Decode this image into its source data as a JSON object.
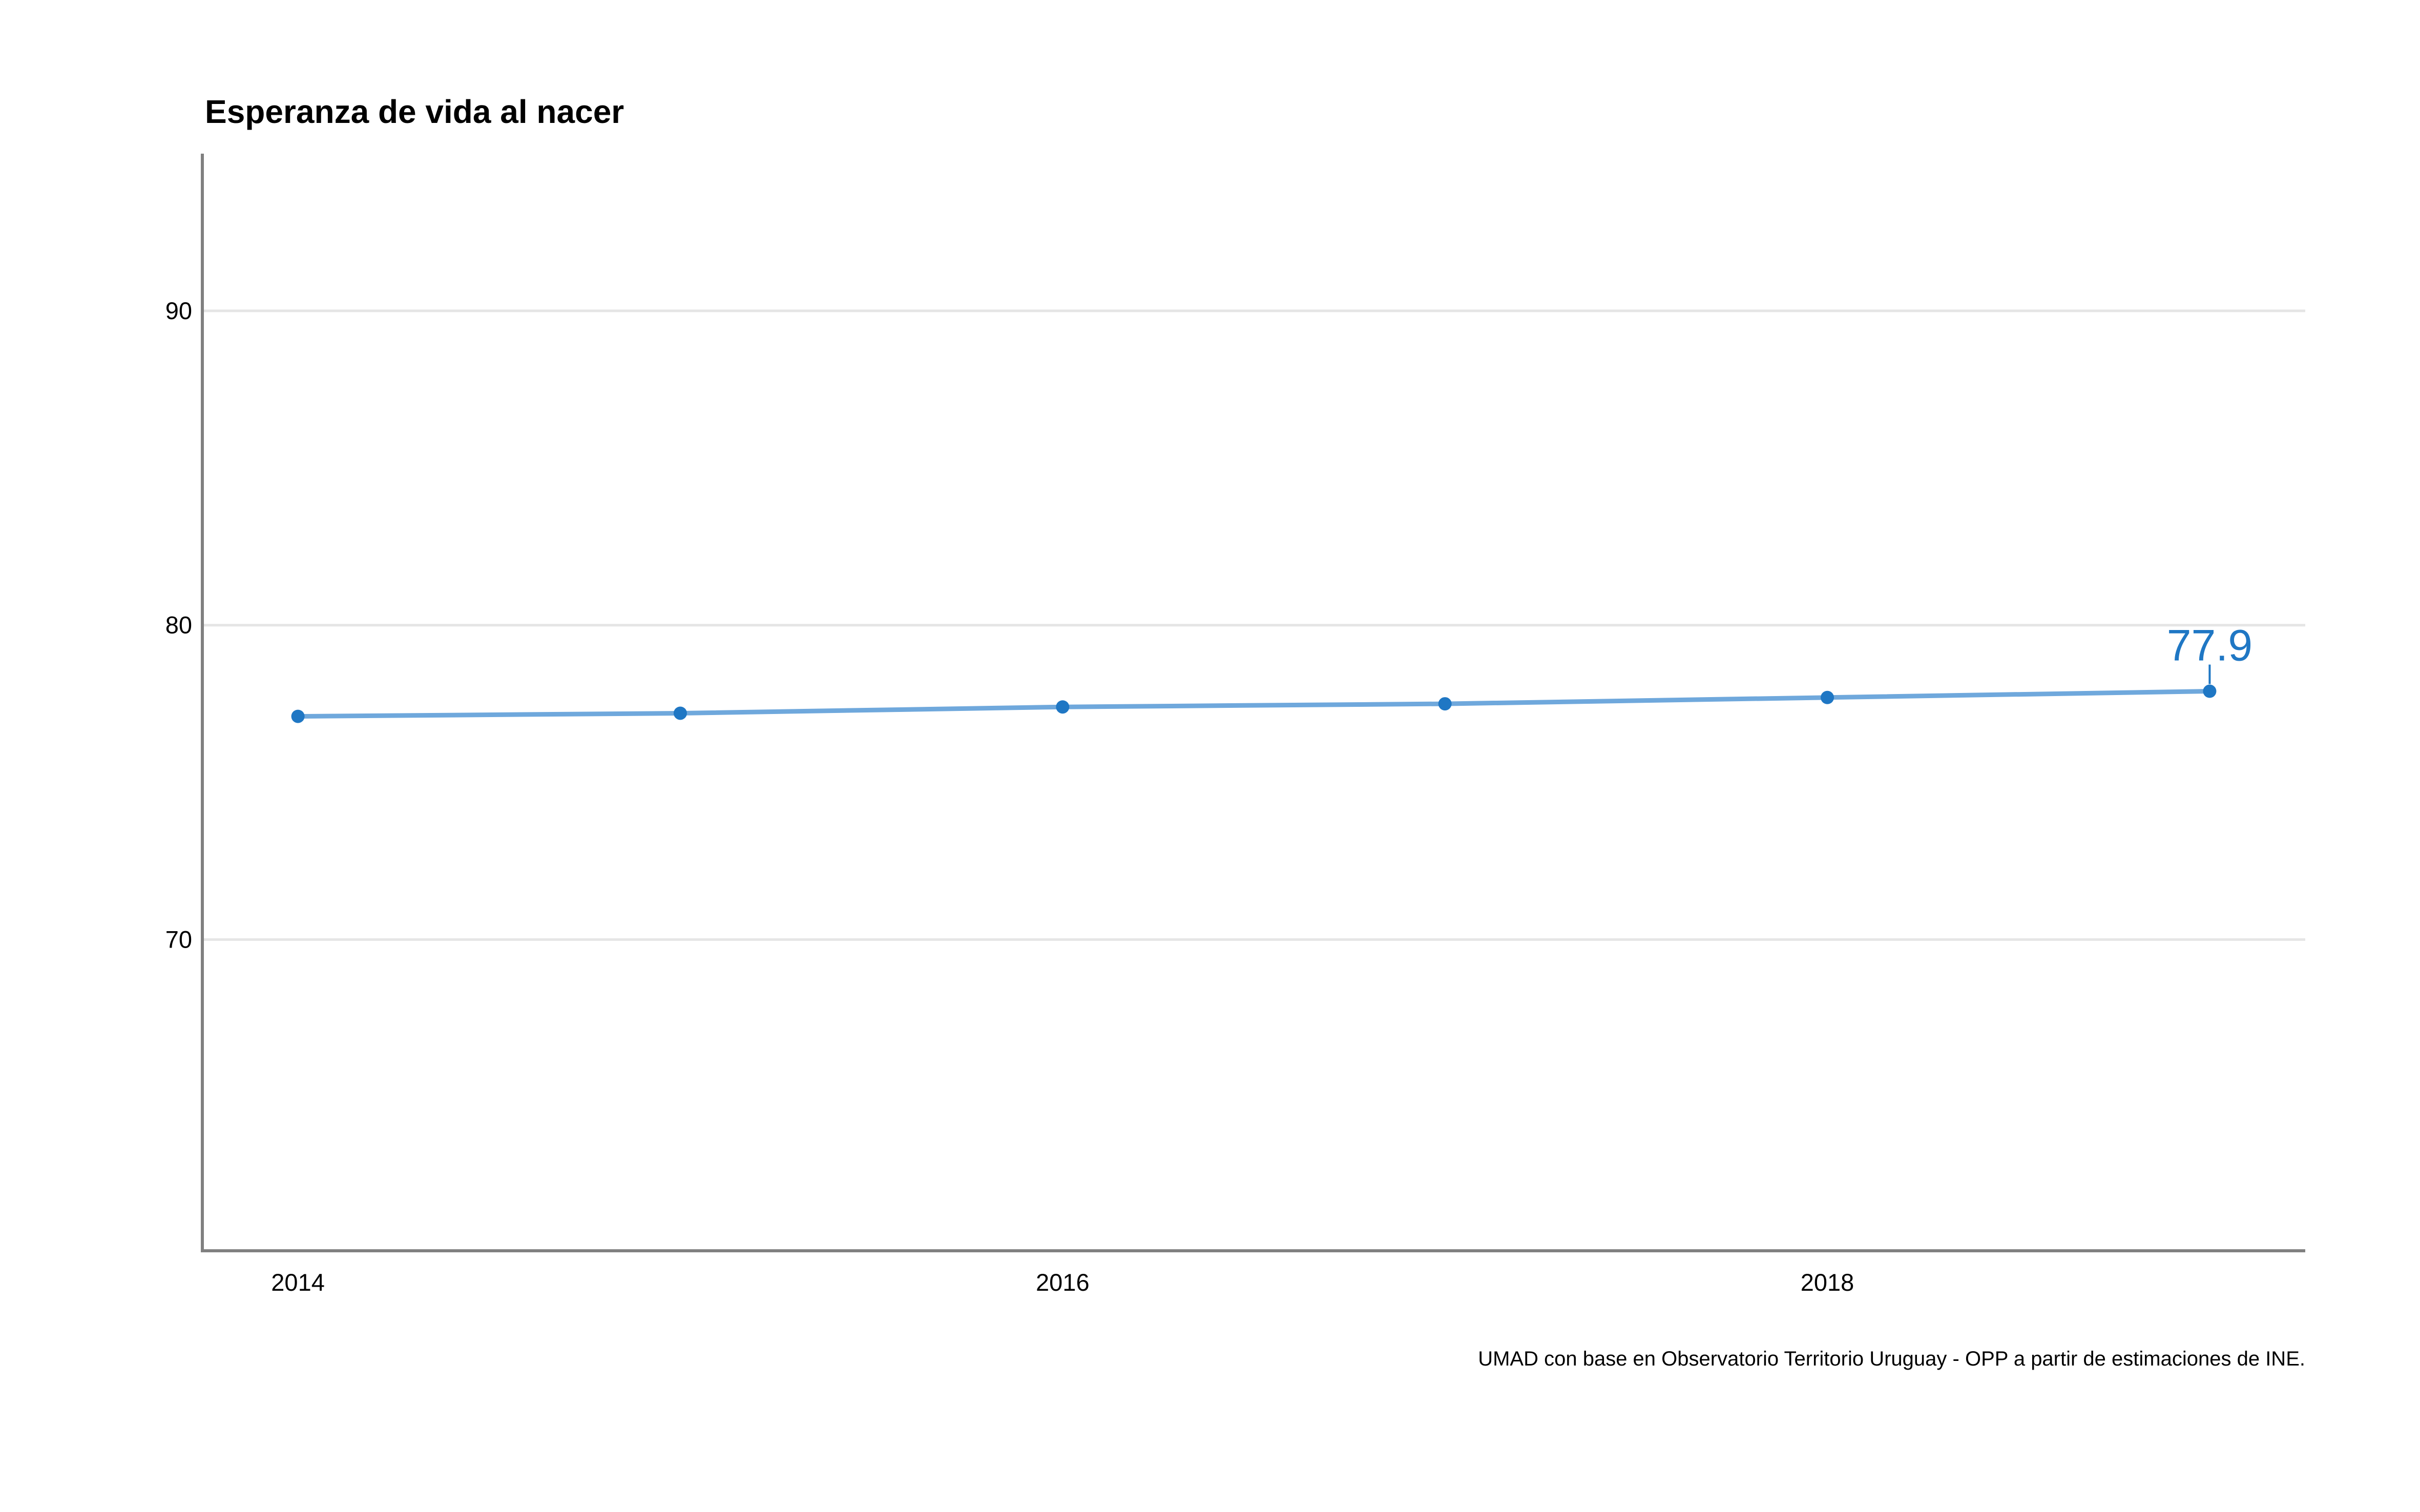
{
  "chart_data": {
    "type": "line",
    "title": "Esperanza de vida al nacer",
    "xlabel": "",
    "ylabel": "",
    "caption": "UMAD con base en Observatorio Territorio Uruguay - OPP a partir de estimaciones de INE.",
    "x": [
      2014,
      2015,
      2016,
      2017,
      2018,
      2019
    ],
    "series": [
      {
        "values": [
          77.1,
          77.2,
          77.4,
          77.5,
          77.7,
          77.9
        ]
      }
    ],
    "last_value_label": "77.9",
    "x_ticks": [
      2014,
      2016,
      2018
    ],
    "x_tick_labels": [
      "2014",
      "2016",
      "2018"
    ],
    "y_ticks": [
      70,
      80,
      90
    ],
    "y_tick_labels": [
      "70",
      "80",
      "90"
    ],
    "xlim": [
      2013.75,
      2019.25
    ],
    "ylim": [
      60.1,
      95
    ],
    "grid": "horizontal-major",
    "legend": "none",
    "colors": {
      "line": "#6FA8DC",
      "points": "#1F77C4",
      "label": "#1F77C4",
      "gridline": "#E5E5E5",
      "axis": "#808080"
    }
  }
}
